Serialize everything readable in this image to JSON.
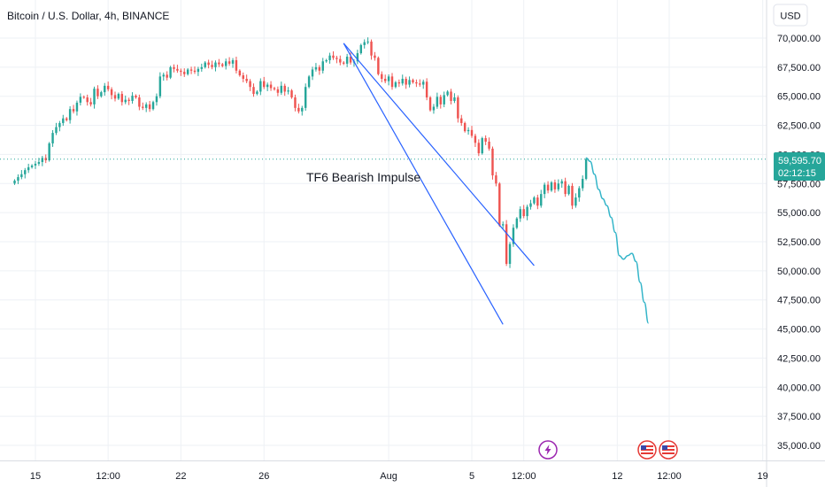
{
  "header": {
    "symbol_title": "Bitcoin / U.S. Dollar, 4h, BINANCE",
    "currency_button": "USD"
  },
  "annotation": {
    "text": "TF6 Bearish Impulse"
  },
  "last_price": {
    "value_label": "59,595.70",
    "countdown_label": "02:12:15",
    "hidden_tick_label": "57,500.00",
    "color": "#26a69a"
  },
  "colors": {
    "up": "#26a69a",
    "down": "#ef5350",
    "trendline": "#2962ff",
    "projection": "#34b5c9",
    "grid": "#eef1f5",
    "axis_text": "#131722"
  },
  "event_icons": [
    {
      "name": "lightning-event-icon",
      "color": "#9c27b0"
    },
    {
      "name": "us-flag-event-icon",
      "color": "#e53935"
    },
    {
      "name": "us-flag-event-icon",
      "color": "#e53935"
    }
  ],
  "chart_data": {
    "type": "candlestick",
    "title": "Bitcoin / U.S. Dollar, 4h, BINANCE",
    "y_axis": {
      "ticks": [
        35000,
        37500,
        40000,
        42500,
        45000,
        47500,
        50000,
        52500,
        55000,
        57500,
        60000,
        62500,
        65000,
        67500,
        70000
      ],
      "tick_labels": [
        "35,000.00",
        "37,500.00",
        "40,000.00",
        "42,500.00",
        "45,000.00",
        "47,500.00",
        "50,000.00",
        "52,500.00",
        "55,000.00",
        "57,500.00",
        "60,000.00",
        "62,500.00",
        "65,000.00",
        "67,500.00",
        "70,000.00"
      ],
      "ylim": [
        33000,
        72000
      ],
      "position": "right"
    },
    "x_axis": {
      "tick_labels": [
        "15",
        "12:00",
        "22",
        "26",
        "Aug",
        "5",
        "12:00",
        "12",
        "12:00",
        "19"
      ],
      "tick_dates": [
        "2024-07-15",
        "2024-07-18T12:00",
        "2024-07-22",
        "2024-07-26",
        "2024-08-01",
        "2024-08-05",
        "2024-08-07T12:00",
        "2024-08-12",
        "2024-08-14T12:00",
        "2024-08-19"
      ],
      "xlim": [
        "2024-07-14T00:00",
        "2024-08-19T00:00"
      ]
    },
    "grid": true,
    "candles": {
      "start": "2024-07-14T00:00",
      "interval_hours": 4,
      "close_series": [
        57750,
        58050,
        58300,
        58650,
        58900,
        59050,
        59200,
        59350,
        59700,
        59500,
        60950,
        61850,
        62350,
        62700,
        63100,
        62950,
        63900,
        63700,
        64450,
        64950,
        64900,
        64500,
        64300,
        65650,
        65000,
        65350,
        65900,
        65600,
        65100,
        64800,
        65200,
        64500,
        64700,
        64600,
        65050,
        64900,
        64100,
        64000,
        64300,
        63900,
        64500,
        65000,
        66700,
        66850,
        66600,
        67500,
        67350,
        67200,
        67100,
        66900,
        67300,
        67200,
        67100,
        67350,
        67500,
        67900,
        67700,
        67500,
        67900,
        67750,
        67600,
        68000,
        67800,
        68100,
        67200,
        66800,
        66500,
        66300,
        65800,
        65200,
        65400,
        66300,
        65800,
        66000,
        65700,
        65600,
        65300,
        65900,
        65400,
        65500,
        64900,
        64000,
        63700,
        64000,
        65800,
        66700,
        67300,
        67500,
        67200,
        68000,
        68100,
        68500,
        68300,
        68200,
        67900,
        67800,
        68400,
        67900,
        68000,
        68700,
        69400,
        69650,
        69700,
        68500,
        68300,
        66900,
        66500,
        66300,
        66700,
        65800,
        66200,
        66100,
        66500,
        66000,
        66400,
        66200,
        66100,
        66000,
        66250,
        64900,
        63800,
        64100,
        64950,
        64300,
        65100,
        65400,
        64600,
        64900,
        63100,
        62700,
        62000,
        62100,
        61600,
        61000,
        60100,
        61400,
        61100,
        60500,
        58200,
        57500,
        53900,
        54000,
        50600,
        52300,
        53700,
        54500,
        55300,
        54700,
        55500,
        55800,
        56300,
        55600,
        56600,
        57400,
        56900,
        57600,
        57000,
        57500,
        57700,
        56600,
        57300,
        55600,
        56300,
        57100,
        57900,
        59595.7
      ]
    },
    "projection": {
      "type": "line",
      "values": [
        59700,
        59400,
        58300,
        57000,
        56200,
        55600,
        54600,
        53300,
        51300,
        51000,
        51300,
        51500,
        50800,
        49000,
        47300,
        45500
      ],
      "end_date": "2024-08-13T12:00"
    },
    "trendlines": [
      {
        "from": [
          "2024-07-29T20:00",
          69550
        ],
        "to": [
          "2024-08-06T12:00",
          45400
        ]
      },
      {
        "from": [
          "2024-07-29T20:00",
          69550
        ],
        "to": [
          "2024-08-08T00:00",
          50450
        ]
      }
    ],
    "annotations": [
      "TF6 Bearish Impulse"
    ]
  }
}
